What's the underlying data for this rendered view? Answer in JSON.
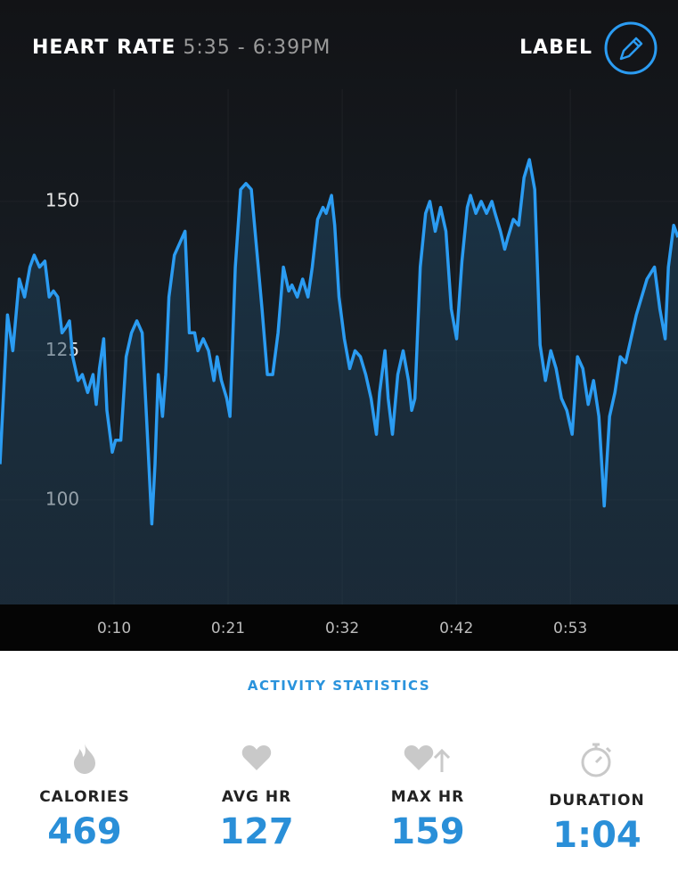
{
  "header": {
    "title": "HEART RATE",
    "time_range": "5:35 - 6:39PM",
    "label_button": "LABEL"
  },
  "chart_data": {
    "type": "line",
    "x": [
      0,
      0.7,
      1.2,
      1.8,
      2.3,
      2.8,
      3.2,
      3.7,
      4.2,
      4.6,
      5.0,
      5.4,
      5.8,
      6.2,
      6.5,
      6.8,
      7.3,
      7.7,
      8.2,
      8.7,
      9.0,
      9.3,
      9.7,
      10.0,
      10.5,
      10.8,
      11.3,
      11.8,
      12.3,
      12.8,
      13.3,
      13.7,
      14.2,
      14.5,
      14.8,
      15.2,
      15.5,
      15.8,
      16.3,
      16.8,
      17.3,
      17.7,
      18.2,
      18.5,
      19.0,
      19.5,
      20.0,
      20.3,
      20.7,
      21.2,
      21.5,
      22.0,
      22.5,
      23.0,
      23.5,
      24.0,
      24.5,
      25.0,
      25.5,
      26.0,
      26.5,
      27.0,
      27.3,
      27.8,
      28.3,
      28.8,
      29.2,
      29.7,
      30.2,
      30.5,
      31.0,
      31.3,
      31.7,
      32.2,
      32.7,
      33.2,
      33.7,
      34.2,
      34.7,
      35.2,
      35.5,
      36.0,
      36.3,
      36.7,
      37.2,
      37.7,
      38.2,
      38.5,
      38.8,
      39.3,
      39.8,
      40.2,
      40.7,
      41.2,
      41.7,
      42.2,
      42.7,
      43.2,
      43.7,
      44.0,
      44.5,
      45.0,
      45.5,
      46.0,
      46.3,
      46.8,
      47.2,
      47.5,
      48.0,
      48.5,
      49.0,
      49.5,
      50.0,
      50.5,
      51.0,
      51.5,
      52.0,
      52.5,
      53.0,
      53.5,
      54.0,
      54.5,
      55.0,
      55.5,
      56.0,
      56.5,
      57.0,
      57.5,
      58.0,
      58.5,
      59.0,
      59.5,
      60.0,
      60.5,
      61.2,
      61.7,
      62.2,
      62.5,
      63.0,
      63.4
    ],
    "values": [
      106,
      131,
      125,
      137,
      134,
      139,
      141,
      139,
      140,
      134,
      135,
      134,
      128,
      129,
      130,
      124,
      120,
      121,
      118,
      121,
      116,
      122,
      127,
      115,
      108,
      110,
      110,
      124,
      128,
      130,
      128,
      114,
      96,
      106,
      121,
      114,
      121,
      134,
      141,
      143,
      145,
      128,
      128,
      125,
      127,
      125,
      120,
      124,
      120,
      117,
      114,
      139,
      152,
      153,
      152,
      142,
      132,
      121,
      121,
      128,
      139,
      135,
      136,
      134,
      137,
      134,
      139,
      147,
      149,
      148,
      151,
      146,
      134,
      127,
      122,
      125,
      124,
      121,
      117,
      111,
      118,
      125,
      117,
      111,
      121,
      125,
      120,
      115,
      117,
      139,
      148,
      150,
      145,
      149,
      145,
      132,
      127,
      140,
      149,
      151,
      148,
      150,
      148,
      150,
      148,
      145,
      142,
      144,
      147,
      146,
      154,
      157,
      152,
      126,
      120,
      125,
      122,
      117,
      115,
      111,
      124,
      122,
      116,
      120,
      114,
      99,
      114,
      118,
      124,
      123,
      127,
      131,
      134,
      137,
      139,
      132,
      127,
      139,
      146,
      144
    ],
    "color": "#2b9cf2",
    "xlim": [
      0,
      63.4
    ],
    "xticks": [
      {
        "value": 10.67,
        "label": "0:10"
      },
      {
        "value": 21.33,
        "label": "0:21"
      },
      {
        "value": 32,
        "label": "0:32"
      },
      {
        "value": 42.67,
        "label": "0:42"
      },
      {
        "value": 53.33,
        "label": "0:53"
      }
    ],
    "ylim": [
      82.5,
      168.8
    ],
    "yticks": [
      100,
      125,
      150
    ],
    "grid": true
  },
  "stats": {
    "title": "ACTIVITY STATISTICS",
    "items": [
      {
        "label": "CALORIES",
        "value": "469"
      },
      {
        "label": "AVG HR",
        "value": "127"
      },
      {
        "label": "MAX HR",
        "value": "159"
      },
      {
        "label": "DURATION",
        "value": "1:04"
      }
    ]
  }
}
